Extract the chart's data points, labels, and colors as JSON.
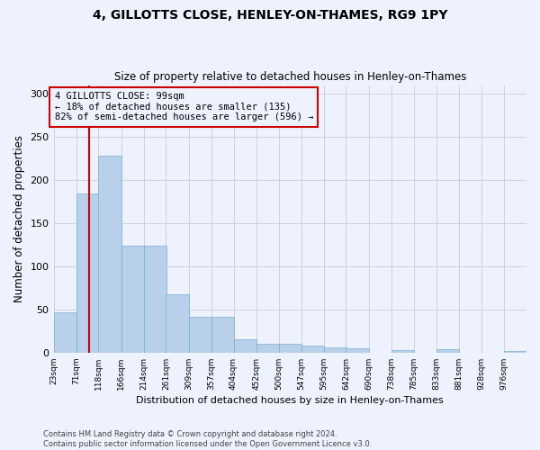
{
  "title": "4, GILLOTTS CLOSE, HENLEY-ON-THAMES, RG9 1PY",
  "subtitle": "Size of property relative to detached houses in Henley-on-Thames",
  "xlabel": "Distribution of detached houses by size in Henley-on-Thames",
  "ylabel": "Number of detached properties",
  "footer_line1": "Contains HM Land Registry data © Crown copyright and database right 2024.",
  "footer_line2": "Contains public sector information licensed under the Open Government Licence v3.0.",
  "annotation_line1": "4 GILLOTTS CLOSE: 99sqm",
  "annotation_line2": "← 18% of detached houses are smaller (135)",
  "annotation_line3": "82% of semi-detached houses are larger (596) →",
  "property_size": 99,
  "bin_edges": [
    23,
    71,
    118,
    166,
    214,
    261,
    309,
    357,
    404,
    452,
    500,
    547,
    595,
    642,
    690,
    738,
    785,
    833,
    881,
    928,
    976
  ],
  "bar_heights": [
    47,
    184,
    228,
    124,
    124,
    68,
    42,
    42,
    15,
    10,
    10,
    8,
    6,
    5,
    0,
    3,
    0,
    4,
    0,
    0,
    2
  ],
  "bar_color": "#B8D0EA",
  "bar_edge_color": "#7AAFD0",
  "redline_color": "#CC0000",
  "annotation_box_color": "#CC0000",
  "background_color": "#EEF2FF",
  "ylim": [
    0,
    310
  ],
  "yticks": [
    0,
    50,
    100,
    150,
    200,
    250,
    300
  ],
  "grid_color": "#CCCCCC",
  "figwidth": 6.0,
  "figheight": 5.0,
  "dpi": 100
}
